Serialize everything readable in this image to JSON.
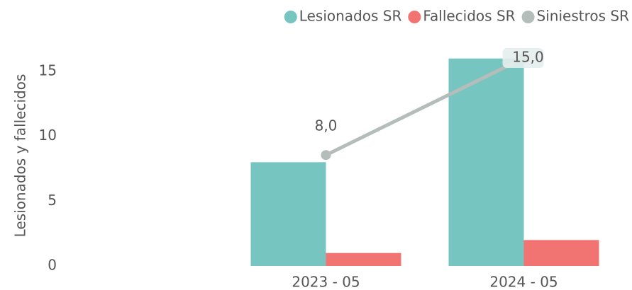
{
  "chart_data": {
    "type": "bar-line",
    "y_label": "Lesionados y fallecidos",
    "categories": [
      "2023 - 05",
      "2024 - 05"
    ],
    "series": [
      {
        "name": "Lesionados SR",
        "color": "#76c5c1",
        "type": "bar",
        "values": [
          8,
          16
        ]
      },
      {
        "name": "Fallecidos SR",
        "color": "#f17473",
        "type": "bar",
        "values": [
          1,
          2
        ]
      },
      {
        "name": "Siniestros SR",
        "color": "#b4bdb9",
        "type": "line",
        "axis": "y2",
        "values": [
          8,
          15
        ],
        "value_labels": [
          "8,0",
          "15,0"
        ]
      }
    ],
    "ylim": [
      0,
      16.42
    ],
    "yticks": [
      0,
      5,
      10,
      15
    ],
    "y2lim": [
      0,
      15.36
    ],
    "legend": "top-right",
    "grid": false
  }
}
